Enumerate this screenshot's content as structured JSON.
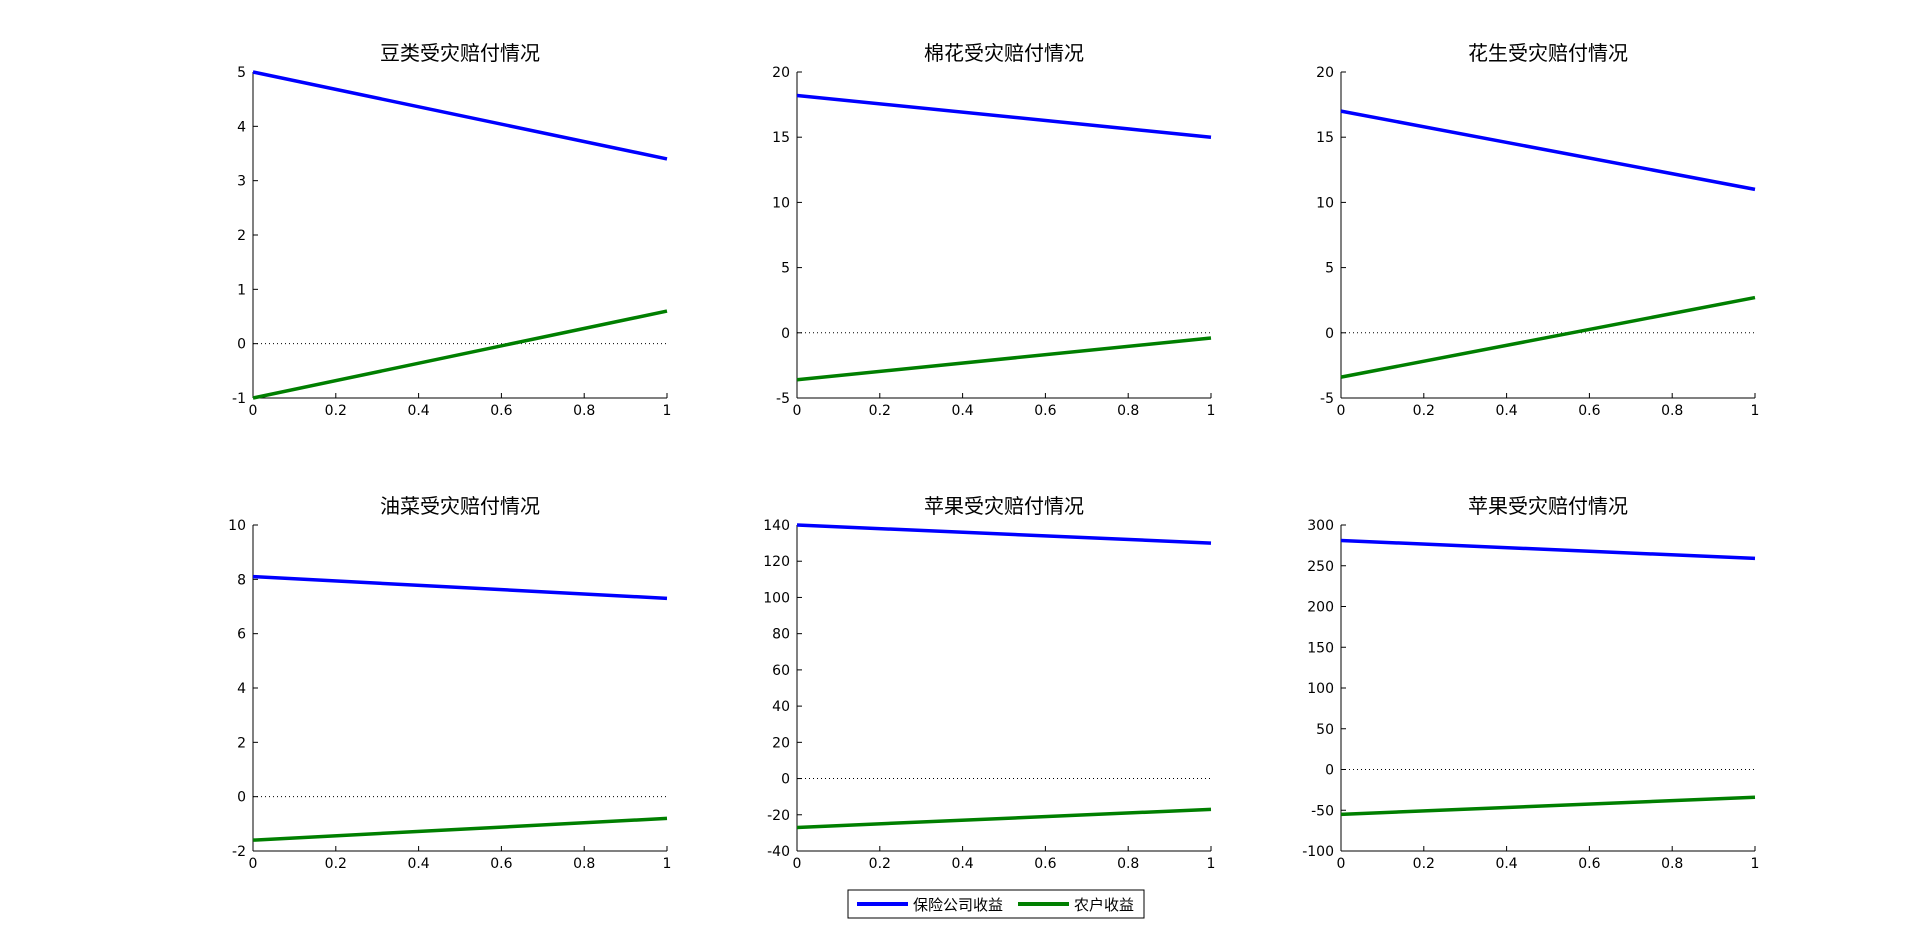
{
  "chart_data": [
    {
      "type": "line",
      "title": "豆类受灾赔付情况",
      "x": [
        0,
        1
      ],
      "xlim": [
        0,
        1
      ],
      "xticks": [
        "0",
        "0.2",
        "0.4",
        "0.6",
        "0.8",
        "1"
      ],
      "ylim": [
        -1,
        5
      ],
      "yticks": [
        "-1",
        "0",
        "1",
        "2",
        "3",
        "4",
        "5"
      ],
      "series": [
        {
          "name": "保险公司收益",
          "color": "#0000ff",
          "values": [
            5.0,
            3.4
          ]
        },
        {
          "name": "农户收益",
          "color": "#007f00",
          "values": [
            -1.0,
            0.6
          ]
        }
      ],
      "reference_line": {
        "y": 0,
        "style": "dotted"
      }
    },
    {
      "type": "line",
      "title": "棉花受灾赔付情况",
      "x": [
        0,
        1
      ],
      "xlim": [
        0,
        1
      ],
      "xticks": [
        "0",
        "0.2",
        "0.4",
        "0.6",
        "0.8",
        "1"
      ],
      "ylim": [
        -5,
        20
      ],
      "yticks": [
        "-5",
        "0",
        "5",
        "10",
        "15",
        "20"
      ],
      "series": [
        {
          "name": "保险公司收益",
          "color": "#0000ff",
          "values": [
            18.2,
            15.0
          ]
        },
        {
          "name": "农户收益",
          "color": "#007f00",
          "values": [
            -3.6,
            -0.4
          ]
        }
      ],
      "reference_line": {
        "y": 0,
        "style": "dotted"
      }
    },
    {
      "type": "line",
      "title": "花生受灾赔付情况",
      "x": [
        0,
        1
      ],
      "xlim": [
        0,
        1
      ],
      "xticks": [
        "0",
        "0.2",
        "0.4",
        "0.6",
        "0.8",
        "1"
      ],
      "ylim": [
        -5,
        20
      ],
      "yticks": [
        "-5",
        "0",
        "5",
        "10",
        "15",
        "20"
      ],
      "series": [
        {
          "name": "保险公司收益",
          "color": "#0000ff",
          "values": [
            17.0,
            11.0
          ]
        },
        {
          "name": "农户收益",
          "color": "#007f00",
          "values": [
            -3.4,
            2.7
          ]
        }
      ],
      "reference_line": {
        "y": 0,
        "style": "dotted"
      }
    },
    {
      "type": "line",
      "title": "油菜受灾赔付情况",
      "x": [
        0,
        1
      ],
      "xlim": [
        0,
        1
      ],
      "xticks": [
        "0",
        "0.2",
        "0.4",
        "0.6",
        "0.8",
        "1"
      ],
      "ylim": [
        -2,
        10
      ],
      "yticks": [
        "-2",
        "0",
        "2",
        "4",
        "6",
        "8",
        "10"
      ],
      "series": [
        {
          "name": "保险公司收益",
          "color": "#0000ff",
          "values": [
            8.1,
            7.3
          ]
        },
        {
          "name": "农户收益",
          "color": "#007f00",
          "values": [
            -1.6,
            -0.8
          ]
        }
      ],
      "reference_line": {
        "y": 0,
        "style": "dotted"
      }
    },
    {
      "type": "line",
      "title": "苹果受灾赔付情况",
      "x": [
        0,
        1
      ],
      "xlim": [
        0,
        1
      ],
      "xticks": [
        "0",
        "0.2",
        "0.4",
        "0.6",
        "0.8",
        "1"
      ],
      "ylim": [
        -40,
        140
      ],
      "yticks": [
        "-40",
        "-20",
        "0",
        "20",
        "40",
        "60",
        "80",
        "100",
        "120",
        "140"
      ],
      "series": [
        {
          "name": "保险公司收益",
          "color": "#0000ff",
          "values": [
            140,
            130
          ]
        },
        {
          "name": "农户收益",
          "color": "#007f00",
          "values": [
            -27,
            -17
          ]
        }
      ],
      "reference_line": {
        "y": 0,
        "style": "dotted"
      }
    },
    {
      "type": "line",
      "title": "苹果受灾赔付情况",
      "x": [
        0,
        1
      ],
      "xlim": [
        0,
        1
      ],
      "xticks": [
        "0",
        "0.2",
        "0.4",
        "0.6",
        "0.8",
        "1"
      ],
      "ylim": [
        -100,
        300
      ],
      "yticks": [
        "-100",
        "-50",
        "0",
        "50",
        "100",
        "150",
        "200",
        "250",
        "300"
      ],
      "series": [
        {
          "name": "保险公司收益",
          "color": "#0000ff",
          "values": [
            281,
            259
          ]
        },
        {
          "name": "农户收益",
          "color": "#007f00",
          "values": [
            -55,
            -34
          ]
        }
      ],
      "reference_line": {
        "y": 0,
        "style": "dotted"
      }
    }
  ],
  "legend": {
    "placement": "bottom-center",
    "entries": [
      {
        "label": "保险公司收益",
        "color": "#0000ff"
      },
      {
        "label": "农户收益",
        "color": "#007f00"
      }
    ]
  }
}
